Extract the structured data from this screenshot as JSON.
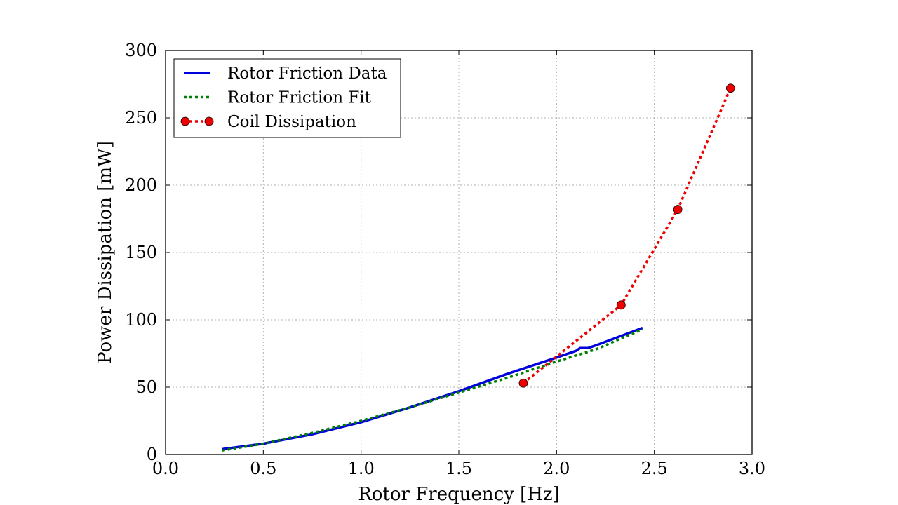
{
  "chart_data": {
    "type": "line",
    "title": "",
    "xlabel": "Rotor Frequency [Hz]",
    "ylabel": "Power Dissipation [mW]",
    "xlim": [
      0.0,
      3.0
    ],
    "ylim": [
      0,
      300
    ],
    "xticks": [
      "0.0",
      "0.5",
      "1.0",
      "1.5",
      "2.0",
      "2.5",
      "3.0"
    ],
    "yticks": [
      "0",
      "50",
      "100",
      "150",
      "200",
      "250",
      "300"
    ],
    "grid": true,
    "legend_position": "top-left",
    "series": [
      {
        "name": "Rotor Friction Data",
        "color": "#0000dd",
        "style": "solid",
        "x": [
          0.29,
          0.5,
          0.75,
          1.0,
          1.25,
          1.5,
          1.75,
          2.0,
          2.1,
          2.12,
          2.16,
          2.2,
          2.44
        ],
        "y": [
          4,
          8,
          15,
          24,
          35,
          47,
          60,
          72,
          77,
          79,
          79,
          81,
          94
        ]
      },
      {
        "name": "Rotor Friction Fit",
        "color": "#008000",
        "style": "dotted",
        "x": [
          0.29,
          0.5,
          0.75,
          1.0,
          1.25,
          1.5,
          1.75,
          2.0,
          2.2,
          2.44
        ],
        "y": [
          3,
          8,
          16,
          25,
          35,
          46,
          57,
          69,
          78,
          93
        ]
      },
      {
        "name": "Coil Dissipation",
        "color": "#ee0000",
        "style": "dotted-markers",
        "x": [
          1.83,
          2.33,
          2.62,
          2.89
        ],
        "y": [
          53,
          111,
          182,
          272
        ]
      }
    ]
  }
}
